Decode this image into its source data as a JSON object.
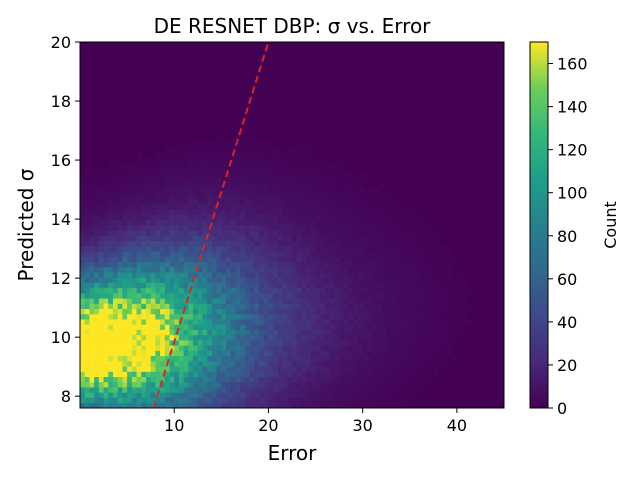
{
  "chart_data": {
    "type": "heatmap",
    "title": "DE RESNET DBP: σ vs. Error",
    "xlabel": "Error",
    "ylabel": "Predicted σ",
    "xlim": [
      0,
      45
    ],
    "ylim": [
      7.6,
      20
    ],
    "x_ticks": [
      "10",
      "20",
      "30",
      "40"
    ],
    "y_ticks": [
      "8",
      "10",
      "12",
      "14",
      "16",
      "18",
      "20"
    ],
    "x_tick_values": [
      10,
      20,
      30,
      40
    ],
    "y_tick_values": [
      8,
      10,
      12,
      14,
      16,
      18,
      20
    ],
    "bins": {
      "x": 90,
      "y": 70
    },
    "density": {
      "peak": {
        "error": 1.5,
        "sigma": 9.6
      },
      "peak_count": 165,
      "bulk_x_range": [
        0,
        20
      ],
      "bulk_y_range": [
        8.3,
        12.5
      ],
      "tail_x_max": 35,
      "tail_y_max": 15
    },
    "colormap": "viridis",
    "colorbar": {
      "label": "Count",
      "min": 0,
      "max": 170,
      "ticks": [
        "0",
        "20",
        "40",
        "60",
        "80",
        "100",
        "120",
        "140",
        "160"
      ],
      "tick_values": [
        0,
        20,
        40,
        60,
        80,
        100,
        120,
        140,
        160
      ]
    },
    "reference_line": {
      "style": "dashed",
      "color": "#d62728",
      "points": [
        [
          7.8,
          7.6
        ],
        [
          20,
          20
        ]
      ]
    },
    "grid": false
  }
}
